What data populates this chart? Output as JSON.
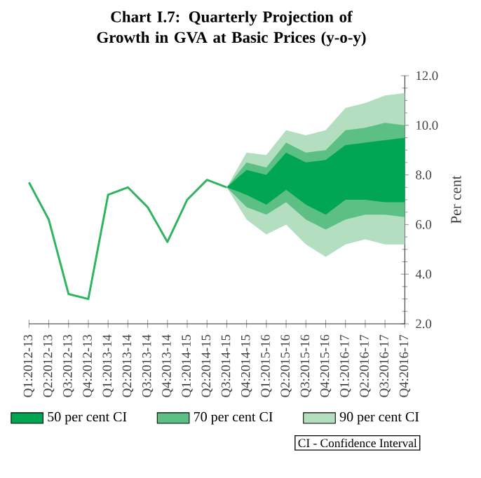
{
  "chart_data": {
    "type": "line",
    "title": "Chart I.7: Quarterly Projection of Growth in GVA at Basic Prices (y-o-y)",
    "ylabel": "Per cent",
    "categories": [
      "Q1:2012-13",
      "Q2:2012-13",
      "Q3:2012-13",
      "Q4:2012-13",
      "Q1:2013-14",
      "Q2:2013-14",
      "Q3:2013-14",
      "Q4:2013-14",
      "Q1:2014-15",
      "Q2:2014-15",
      "Q3:2014-15",
      "Q4:2014-15",
      "Q1:2015-16",
      "Q2:2015-16",
      "Q3:2015-16",
      "Q4:2015-16",
      "Q1:2016-17",
      "Q2:2016-17",
      "Q3:2016-17",
      "Q4:2016-17"
    ],
    "series": [
      {
        "color": "#2db55d",
        "values": [
          7.7,
          6.2,
          3.2,
          3.0,
          7.2,
          7.5,
          6.7,
          5.3,
          7.0,
          7.8,
          7.5,
          null,
          null,
          null,
          null,
          null,
          null,
          null,
          null,
          null
        ]
      },
      {
        "type": "area",
        "name": "50 per cent CI",
        "color": "#00a651",
        "values": [
          null,
          null,
          null,
          null,
          null,
          null,
          null,
          null,
          null,
          null,
          null,
          null,
          null,
          null,
          null,
          null,
          null,
          null,
          null,
          null
        ],
        "lower": [
          null,
          null,
          null,
          null,
          null,
          null,
          null,
          null,
          null,
          null,
          7.5,
          7.2,
          6.8,
          7.4,
          6.8,
          6.4,
          7.0,
          7.0,
          6.9,
          6.9
        ],
        "upper": [
          null,
          null,
          null,
          null,
          null,
          null,
          null,
          null,
          null,
          null,
          7.5,
          8.2,
          8.0,
          8.9,
          8.5,
          8.6,
          9.2,
          9.3,
          9.4,
          9.5
        ]
      },
      {
        "type": "area",
        "name": "70 per cent CI",
        "color": "#5cbf83",
        "values": [
          null,
          null,
          null,
          null,
          null,
          null,
          null,
          null,
          null,
          null,
          null,
          null,
          null,
          null,
          null,
          null,
          null,
          null,
          null,
          null
        ],
        "lower": [
          null,
          null,
          null,
          null,
          null,
          null,
          null,
          null,
          null,
          null,
          7.5,
          6.7,
          6.4,
          6.9,
          6.2,
          5.8,
          6.2,
          6.4,
          6.4,
          6.3
        ],
        "upper": [
          null,
          null,
          null,
          null,
          null,
          null,
          null,
          null,
          null,
          null,
          7.5,
          8.5,
          8.3,
          9.3,
          8.9,
          9.0,
          9.8,
          9.9,
          10.1,
          10.0
        ]
      },
      {
        "type": "area",
        "name": "90 per cent CI",
        "color": "#b3dfc0",
        "values": [
          null,
          null,
          null,
          null,
          null,
          null,
          null,
          null,
          null,
          null,
          null,
          null,
          null,
          null,
          null,
          null,
          null,
          null,
          null,
          null
        ],
        "lower": [
          null,
          null,
          null,
          null,
          null,
          null,
          null,
          null,
          null,
          null,
          7.5,
          6.2,
          5.6,
          6.0,
          5.2,
          4.7,
          5.2,
          5.4,
          5.2,
          5.2
        ],
        "upper": [
          null,
          null,
          null,
          null,
          null,
          null,
          null,
          null,
          null,
          null,
          7.5,
          8.9,
          8.8,
          9.8,
          9.6,
          9.8,
          10.7,
          10.9,
          11.2,
          11.3
        ]
      }
    ],
    "ylim": [
      2,
      12
    ],
    "yticks": [
      {
        "value": 2,
        "label": "2.0"
      },
      {
        "value": 4,
        "label": "4.0"
      },
      {
        "value": 6,
        "label": "6.0"
      },
      {
        "value": 8,
        "label": "8.0"
      },
      {
        "value": 10,
        "label": "10.0"
      },
      {
        "value": 12,
        "label": "12.0"
      }
    ],
    "legend": "bottom",
    "marker": "none",
    "line_style": "solid",
    "annotations": [
      "CI - Confidence Interval"
    ]
  }
}
